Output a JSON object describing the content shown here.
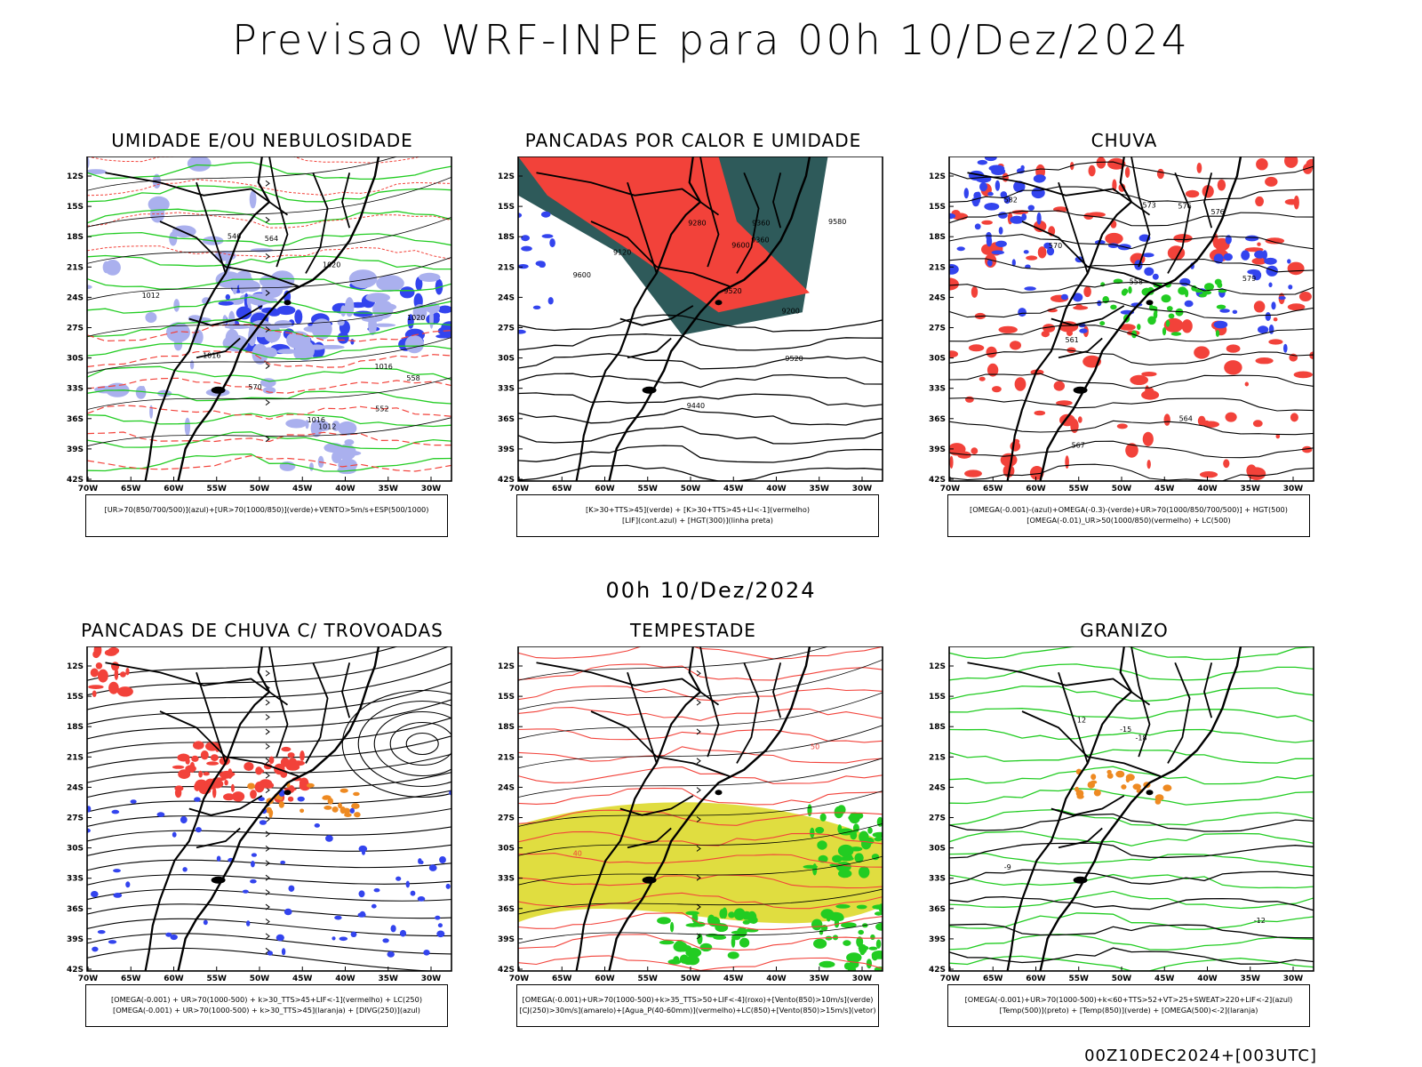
{
  "header": {
    "title": "Previsao WRF-INPE  para 00h 10/Dez/2024",
    "mid_label": "00h 10/Dez/2024",
    "footer_stamp": "00Z10DEC2024+[003UTC]"
  },
  "axes": {
    "lat_labels": [
      "12S",
      "15S",
      "18S",
      "21S",
      "24S",
      "27S",
      "30S",
      "33S",
      "36S",
      "39S",
      "42S"
    ],
    "lon_labels": [
      "70W",
      "65W",
      "60W",
      "55W",
      "50W",
      "45W",
      "40W",
      "35W",
      "30W"
    ]
  },
  "panels": [
    {
      "title": "UMIDADE E/OU NEBULOSIDADE",
      "legend": [
        "[UR>70(850/700/500)](azul)+[UR>70(1000/850)](verde)+VENTO>5m/s+ESP(500/1000)"
      ],
      "contour_labels": [
        "1012",
        "1012",
        "1016",
        "1016",
        "1020",
        "1020",
        "1016",
        "570",
        "564",
        "558",
        "552",
        "546"
      ]
    },
    {
      "title": "PANCADAS POR CALOR E UMIDADE",
      "legend": [
        "[K>30+TTS>45](verde) + [K>30+TTS>45+LI<-1](vermelho)",
        "[LIF](cont.azul) + [HGT(300)](linha preta)"
      ],
      "contour_labels": [
        "9600",
        "9580",
        "9600",
        "9520",
        "9440",
        "9360",
        "9280",
        "9200",
        "9120",
        "9360",
        "9520"
      ]
    },
    {
      "title": "CHUVA",
      "legend": [
        "[OMEGA(-0.001)-(azul)+OMEGA(-0.3)-(verde)+UR>70(1000/850/700/500)] + HGT(500)",
        "[OMEGA(-0.01)_UR>50(1000/850)(vermelho) + LC(500)"
      ],
      "contour_labels": [
        "582",
        "576",
        "573",
        "570",
        "567",
        "564",
        "561",
        "558",
        "579",
        "576"
      ]
    },
    {
      "title": "PANCADAS DE CHUVA C/ TROVOADAS",
      "legend": [
        "[OMEGA(-0.001) + UR>70(1000-500) + k>30_TTS>45+LIF<-1](vermelho) + LC(250)",
        "[OMEGA(-0.001) + UR>70(1000-500) + k>30_TTS>45](laranja) + [DIVG(250)](azul)"
      ],
      "contour_labels": []
    },
    {
      "title": "TEMPESTADE",
      "legend": [
        "[OMEGA(-0.001)+UR>70(1000-500)+k>35_TTS>50+LIF<-4](roxo)+[Vento(850)>10m/s](verde)",
        "[CJ(250)>30m/s](amarelo)+[Agua_P(40-60mm)](vermelho)+LC(850)+[Vento(850)>15m/s](vetor)"
      ],
      "contour_labels": [
        "40",
        "50"
      ]
    },
    {
      "title": "GRANIZO",
      "legend": [
        "[OMEGA(-0.001)+UR>70(1000-500)+k<60+TTS>52+VT>25+SWEAT>220+LIF<-2](azul)",
        "[Temp(500)](preto) + [Temp(850)](verde) + [OMEGA(500)<-2](laranja)"
      ],
      "contour_labels": [
        "-9",
        "-12",
        "-15",
        "-18",
        "12"
      ]
    }
  ],
  "colors": {
    "red": "#f2423a",
    "green": "#22cc22",
    "blue": "#3344ee",
    "lightblue": "#aab0ee",
    "darkteal": "#2e5a5a",
    "yellow": "#e0dd40",
    "orange": "#ee8a22",
    "black": "#000000"
  }
}
